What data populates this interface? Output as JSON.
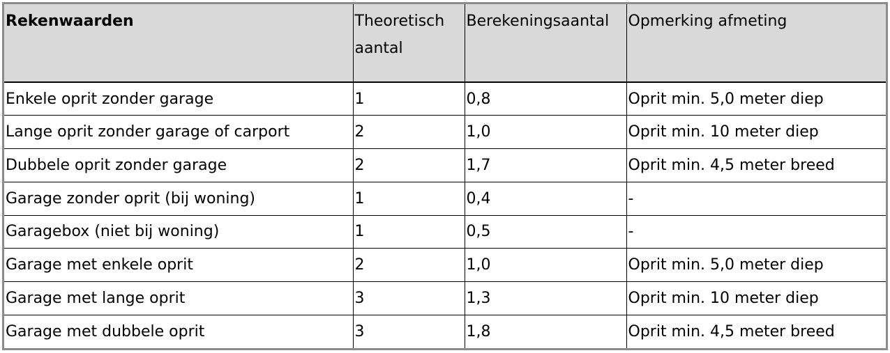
{
  "table": {
    "headers": [
      "Rekenwaarden",
      "Theoretisch aantal",
      "Berekeningsaantal",
      "Opmerking afmeting"
    ],
    "rows": [
      [
        "Enkele oprit zonder garage",
        "1",
        "0,8",
        "Oprit min. 5,0 meter diep"
      ],
      [
        "Lange oprit zonder garage of carport",
        "2",
        "1,0",
        "Oprit min. 10 meter diep"
      ],
      [
        "Dubbele oprit zonder garage",
        "2",
        "1,7",
        "Oprit min. 4,5 meter breed"
      ],
      [
        "Garage zonder oprit (bij woning)",
        "1",
        "0,4",
        "-"
      ],
      [
        "Garagebox (niet bij woning)",
        "1",
        "0,5",
        "-"
      ],
      [
        "Garage met enkele oprit",
        "2",
        "1,0",
        "Oprit min. 5,0 meter diep"
      ],
      [
        "Garage met lange oprit",
        "3",
        "1,3",
        "Oprit min. 10 meter diep"
      ],
      [
        "Garage met dubbele oprit",
        "3",
        "1,8",
        "Oprit min. 4,5 meter breed"
      ]
    ]
  },
  "colors": {
    "header_background": "#d9d9d9",
    "outer_border": "#8c8c8c",
    "grid_lines": "#000000"
  }
}
